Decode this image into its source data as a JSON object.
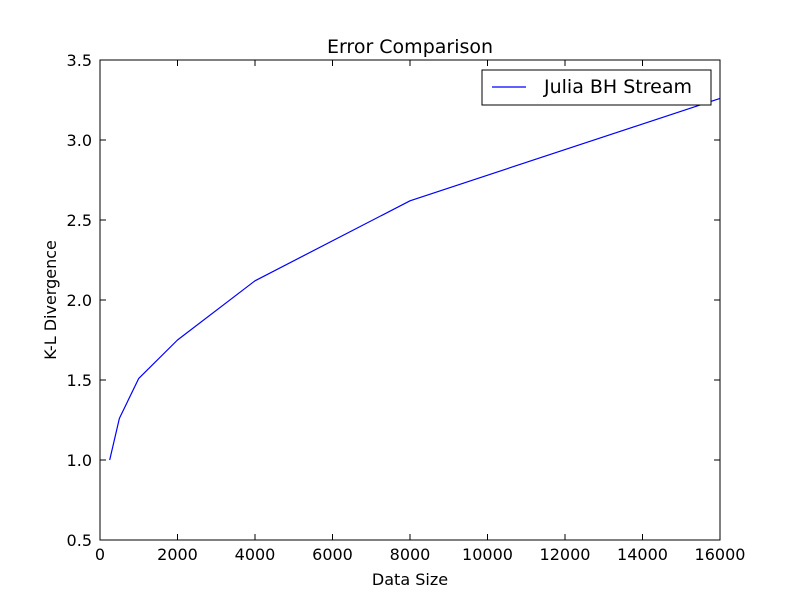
{
  "chart_data": {
    "type": "line",
    "title": "Error Comparison",
    "xlabel": "Data Size",
    "ylabel": "K-L Divergence",
    "xlim": [
      0,
      16000
    ],
    "ylim": [
      0.5,
      3.5
    ],
    "x_ticks": [
      0,
      2000,
      4000,
      6000,
      8000,
      10000,
      12000,
      14000,
      16000
    ],
    "y_ticks": [
      0.5,
      1.0,
      1.5,
      2.0,
      2.5,
      3.0,
      3.5
    ],
    "x_tick_labels": [
      "0",
      "2000",
      "4000",
      "6000",
      "8000",
      "10000",
      "12000",
      "14000",
      "16000"
    ],
    "y_tick_labels": [
      "0.5",
      "1.0",
      "1.5",
      "2.0",
      "2.5",
      "3.0",
      "3.5"
    ],
    "grid": false,
    "legend_position": "top-right",
    "series": [
      {
        "name": "Julia BH Stream",
        "color": "#0000ff",
        "x": [
          250,
          500,
          1000,
          2000,
          4000,
          8000,
          16000
        ],
        "y": [
          1.0,
          1.26,
          1.51,
          1.75,
          2.12,
          2.62,
          3.26
        ]
      }
    ]
  }
}
